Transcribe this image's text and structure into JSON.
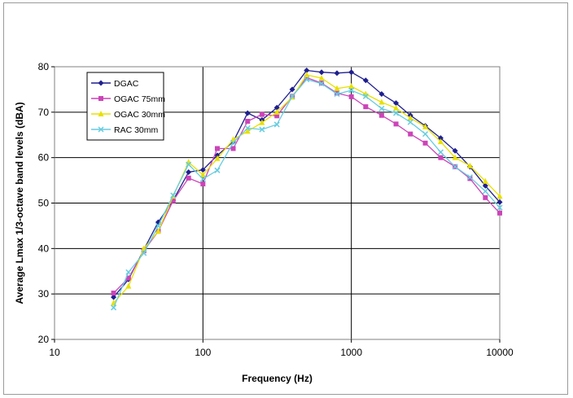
{
  "chart_data": {
    "type": "line",
    "title": "",
    "xlabel": "Frequency (Hz)",
    "ylabel": "Average Lmax 1/3-octave band levels (dBA)",
    "xscale": "log",
    "xlim": [
      10,
      10000
    ],
    "ylim": [
      20,
      80
    ],
    "xticks": [
      "10",
      "100",
      "1000",
      "10000"
    ],
    "yticks": [
      "20",
      "30",
      "40",
      "50",
      "60",
      "70",
      "80"
    ],
    "grid": "major",
    "legend_position": "top-left",
    "x": [
      25,
      31.5,
      40,
      50,
      63,
      80,
      100,
      125,
      160,
      200,
      250,
      315,
      400,
      500,
      630,
      800,
      1000,
      1250,
      1600,
      2000,
      2500,
      3150,
      4000,
      5000,
      6300,
      8000,
      10000
    ],
    "series": [
      {
        "name": "DGAC",
        "color": "#1f1f8f",
        "marker": "diamond",
        "values": [
          29.3,
          33.2,
          39.8,
          45.8,
          50.6,
          56.8,
          57.3,
          60.5,
          63.5,
          69.8,
          68.3,
          71.0,
          75.0,
          79.2,
          78.8,
          78.6,
          78.8,
          77.0,
          74.0,
          72.0,
          69.3,
          67.0,
          64.3,
          61.5,
          58.0,
          53.8,
          50.2
        ]
      },
      {
        "name": "OGAC 75mm",
        "color": "#cc44b8",
        "marker": "square",
        "values": [
          30.2,
          33.5,
          39.5,
          43.8,
          50.5,
          55.5,
          54.2,
          62.0,
          62.0,
          68.0,
          69.5,
          69.2,
          73.5,
          77.6,
          76.4,
          74.2,
          73.4,
          71.2,
          69.3,
          67.4,
          65.2,
          63.2,
          60.0,
          58.0,
          55.4,
          51.2,
          47.8
        ]
      },
      {
        "name": "OGAC 30mm",
        "color": "#e8e000",
        "marker": "triangle",
        "values": [
          28.0,
          31.7,
          40.0,
          43.8,
          51.5,
          59.0,
          56.2,
          59.8,
          64.0,
          65.8,
          67.7,
          70.0,
          73.3,
          78.2,
          77.5,
          75.2,
          75.7,
          74.0,
          72.2,
          70.9,
          68.7,
          66.8,
          63.5,
          60.0,
          58.2,
          54.8,
          51.5
        ]
      },
      {
        "name": "RAC 30mm",
        "color": "#66cce0",
        "marker": "x",
        "values": [
          27.0,
          34.8,
          39.0,
          45.0,
          51.7,
          58.5,
          55.3,
          57.2,
          63.3,
          66.5,
          66.2,
          67.3,
          73.5,
          77.2,
          76.3,
          74.0,
          74.8,
          73.5,
          70.8,
          69.8,
          67.8,
          65.2,
          61.2,
          58.0,
          55.7,
          52.6,
          49.0
        ]
      }
    ]
  }
}
